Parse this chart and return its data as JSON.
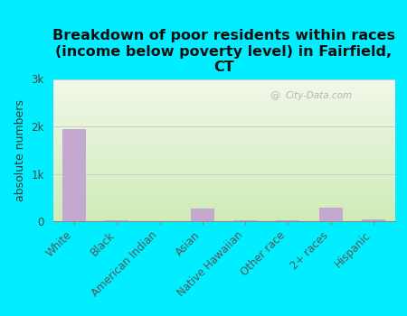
{
  "title": "Breakdown of poor residents within races\n(income below poverty level) in Fairfield,\nCT",
  "categories": [
    "White",
    "Black",
    "American Indian",
    "Asian",
    "Native Hawaiian",
    "Other race",
    "2+ races",
    "Hispanic"
  ],
  "values": [
    1950,
    25,
    5,
    270,
    10,
    15,
    290,
    45
  ],
  "bar_color": "#c4a8d0",
  "ylabel": "absolute numbers",
  "ylim": [
    0,
    3000
  ],
  "yticks": [
    0,
    1000,
    2000,
    3000
  ],
  "ytick_labels": [
    "0",
    "1k",
    "2k",
    "3k"
  ],
  "background_color": "#00eeff",
  "plot_bg_top_color": "#f0f8e8",
  "plot_bg_bottom_color": "#d8efc8",
  "watermark": "City-Data.com",
  "title_fontsize": 11.5,
  "axis_label_fontsize": 9,
  "tick_fontsize": 8.5
}
